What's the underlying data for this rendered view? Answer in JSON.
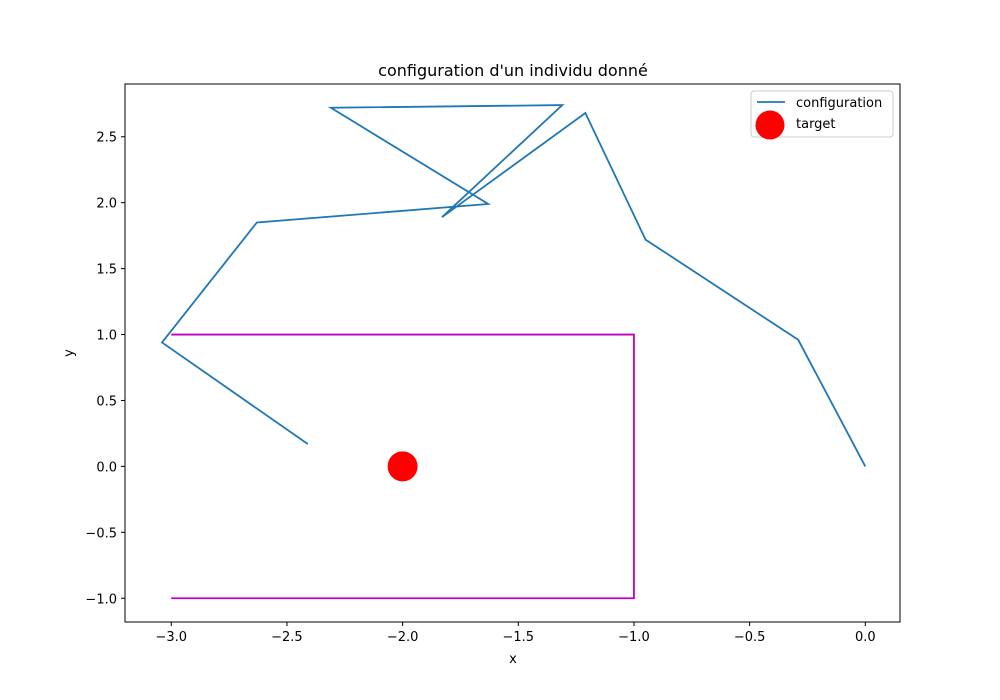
{
  "chart_data": {
    "type": "line",
    "title": "configuration d'un individu donné",
    "xlabel": "x",
    "ylabel": "y",
    "xlim": [
      -3.2,
      0.15
    ],
    "ylim": [
      -1.18,
      2.9
    ],
    "x_ticks": [
      -3.0,
      -2.5,
      -2.0,
      -1.5,
      -1.0,
      -0.5,
      0.0
    ],
    "x_tick_labels": [
      "−3.0",
      "−2.5",
      "−2.0",
      "−1.5",
      "−1.0",
      "−0.5",
      "0.0"
    ],
    "y_ticks": [
      -1.0,
      -0.5,
      0.0,
      0.5,
      1.0,
      1.5,
      2.0,
      2.5
    ],
    "y_tick_labels": [
      "−1.0",
      "−0.5",
      "0.0",
      "0.5",
      "1.0",
      "1.5",
      "2.0",
      "2.5"
    ],
    "grid": false,
    "legend_position": "top-right",
    "series": [
      {
        "name": "configuration",
        "color": "#1f77b4",
        "x": [
          0.0,
          -0.29,
          -0.95,
          -1.21,
          -1.83,
          -1.31,
          -2.31,
          -1.63,
          -2.63,
          -3.04,
          -2.41
        ],
        "y": [
          0.0,
          0.96,
          1.72,
          2.68,
          1.89,
          2.74,
          2.72,
          1.99,
          1.85,
          0.94,
          0.17
        ]
      }
    ],
    "boundary": {
      "color": "#bf00bf",
      "x": [
        -3.0,
        -1.0,
        -1.0,
        -3.0
      ],
      "y": [
        1.0,
        1.0,
        -1.0,
        -1.0
      ]
    },
    "target": {
      "name": "target",
      "color": "#ff0000",
      "x": -2.0,
      "y": 0.0
    }
  }
}
